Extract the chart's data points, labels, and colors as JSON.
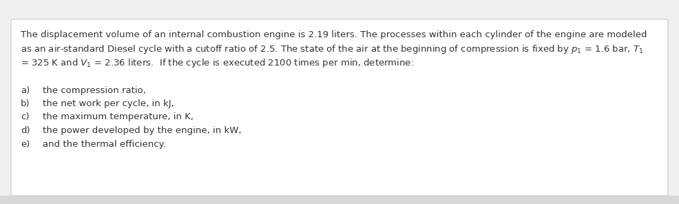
{
  "background_color": "#f0f0f0",
  "box_color": "#ffffff",
  "box_edge_color": "#c8c8c8",
  "text_color": "#333333",
  "font_size": 9.5,
  "paragraph1": [
    "The displacement volume of an internal combustion engine is 2.19 liters. The processes within each cylinder of the engine are modeled",
    "as an air-standard Diesel cycle with a cutoff ratio of 2.5. The state of the air at the beginning of compression is fixed by $p_1$ = 1.6 bar, $T_1$",
    "= 325 K and $V_1$ = 2.36 liters.  If the cycle is executed 2100 times per min, determine:"
  ],
  "items": [
    [
      "a)",
      "the compression ratio,"
    ],
    [
      "b)",
      "the net work per cycle, in kJ,"
    ],
    [
      "c)",
      "the maximum temperature, in K,"
    ],
    [
      "d)",
      "the power developed by the engine, in kW,"
    ],
    [
      "e)",
      "and the thermal efficiency."
    ]
  ]
}
